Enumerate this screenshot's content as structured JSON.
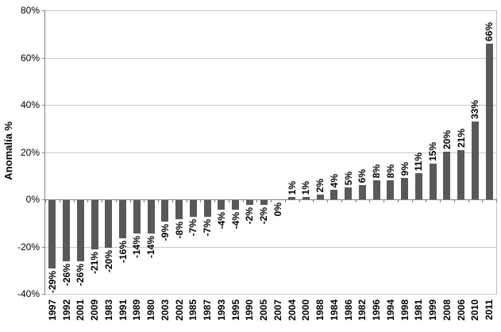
{
  "chart": {
    "colors": {
      "bar": "#595959",
      "gridline": "#c9c9c9",
      "axis": "#808080",
      "plot_border": "#c0c0c0",
      "text": "#000000",
      "background": "#ffffff"
    }
  },
  "chart_data": {
    "type": "bar",
    "title": "",
    "xlabel": "",
    "ylabel": "Anomalía %",
    "ylim": [
      -40,
      80
    ],
    "ytick_step": 20,
    "yticks": [
      "80%",
      "60%",
      "40%",
      "20%",
      "0%",
      "-20%",
      "-40%"
    ],
    "grid": true,
    "legend": "none",
    "categories": [
      "1997",
      "1992",
      "2001",
      "2009",
      "1983",
      "1991",
      "1989",
      "1980",
      "2003",
      "2002",
      "1985",
      "1987",
      "1993",
      "1995",
      "1990",
      "2005",
      "2007",
      "2004",
      "2000",
      "1988",
      "1984",
      "1986",
      "1982",
      "1996",
      "1994",
      "1998",
      "1981",
      "1999",
      "2008",
      "2006",
      "2010",
      "2011"
    ],
    "values": [
      -29,
      -26,
      -26,
      -21,
      -20,
      -16,
      -14,
      -14,
      -9,
      -8,
      -7,
      -7,
      -4,
      -4,
      -2,
      -2,
      0,
      1,
      1,
      2,
      4,
      5,
      6,
      8,
      8,
      9,
      11,
      15,
      20,
      21,
      33,
      66
    ],
    "data_labels": [
      "-29%",
      "-26%",
      "-26%",
      "-21%",
      "-20%",
      "-16%",
      "-14%",
      "-14%",
      "-9%",
      "-8%",
      "-7%",
      "-7%",
      "-4%",
      "-4%",
      "-2%",
      "-2%",
      "0%",
      "1%",
      "1%",
      "2%",
      "4%",
      "5%",
      "6%",
      "8%",
      "8%",
      "9%",
      "11%",
      "15%",
      "20%",
      "21%",
      "33%",
      "66%"
    ]
  }
}
